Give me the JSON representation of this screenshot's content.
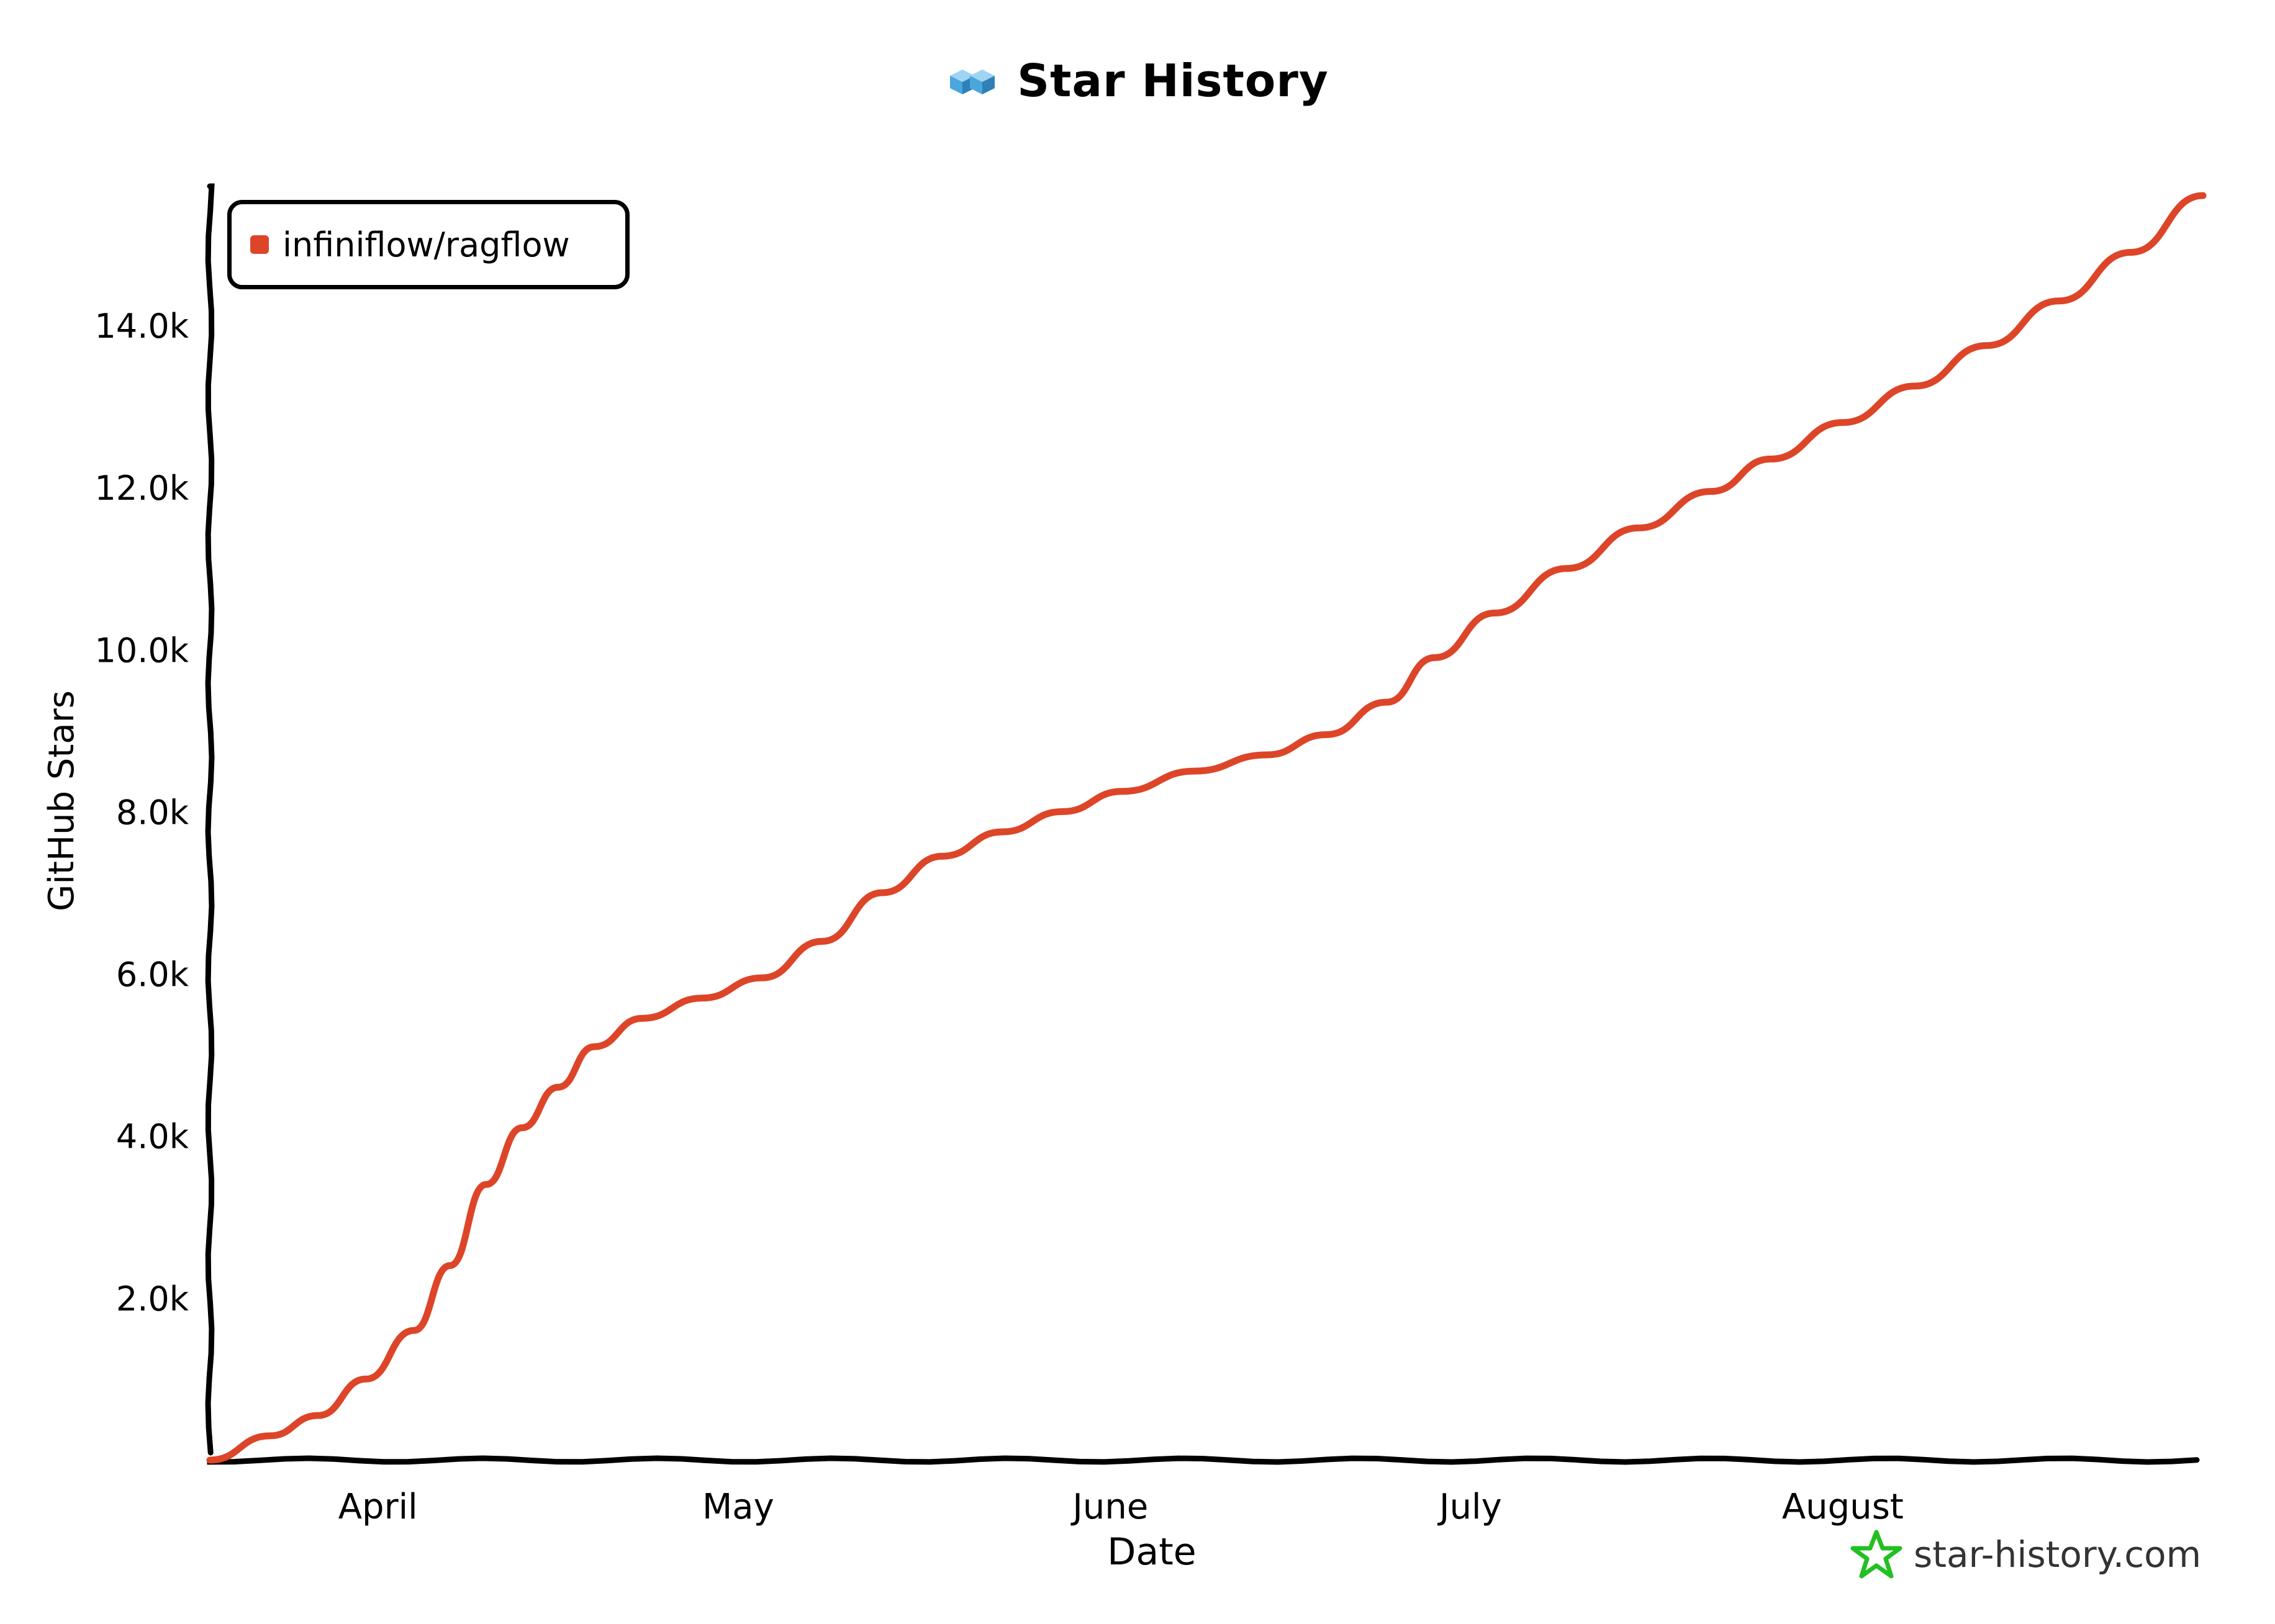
{
  "title": "Star History",
  "watermark": "star-history.com",
  "colors": {
    "series": "#dd4528",
    "axis": "#000000",
    "logo_star": "#22c022",
    "logo_cube": "#4aa6dc"
  },
  "icons": {
    "title_logo": "cube-logo-icon",
    "watermark_logo": "star-logo-icon"
  },
  "chart_data": {
    "type": "line",
    "title": "Star History",
    "xlabel": "Date",
    "ylabel": "GitHub Stars",
    "x_ticks": [
      "April",
      "May",
      "June",
      "July",
      "August"
    ],
    "y_ticks": [
      "2.0k",
      "4.0k",
      "6.0k",
      "8.0k",
      "10.0k",
      "12.0k",
      "14.0k"
    ],
    "ylim": [
      0,
      15700
    ],
    "grid": false,
    "legend_position": "top-left",
    "series": [
      {
        "name": "infiniflow/ragflow",
        "color": "#dd4528",
        "points": [
          {
            "x": "2024-03-18",
            "y": 0
          },
          {
            "x": "2024-03-23",
            "y": 300
          },
          {
            "x": "2024-03-27",
            "y": 550
          },
          {
            "x": "2024-03-31",
            "y": 1000
          },
          {
            "x": "2024-04-04",
            "y": 1600
          },
          {
            "x": "2024-04-07",
            "y": 2400
          },
          {
            "x": "2024-04-10",
            "y": 3400
          },
          {
            "x": "2024-04-13",
            "y": 4100
          },
          {
            "x": "2024-04-16",
            "y": 4600
          },
          {
            "x": "2024-04-19",
            "y": 5100
          },
          {
            "x": "2024-04-23",
            "y": 5450
          },
          {
            "x": "2024-04-28",
            "y": 5700
          },
          {
            "x": "2024-05-03",
            "y": 5950
          },
          {
            "x": "2024-05-08",
            "y": 6400
          },
          {
            "x": "2024-05-13",
            "y": 7000
          },
          {
            "x": "2024-05-18",
            "y": 7450
          },
          {
            "x": "2024-05-23",
            "y": 7750
          },
          {
            "x": "2024-05-28",
            "y": 8000
          },
          {
            "x": "2024-06-02",
            "y": 8250
          },
          {
            "x": "2024-06-08",
            "y": 8500
          },
          {
            "x": "2024-06-14",
            "y": 8700
          },
          {
            "x": "2024-06-19",
            "y": 8950
          },
          {
            "x": "2024-06-24",
            "y": 9350
          },
          {
            "x": "2024-06-28",
            "y": 9900
          },
          {
            "x": "2024-07-03",
            "y": 10450
          },
          {
            "x": "2024-07-09",
            "y": 11000
          },
          {
            "x": "2024-07-15",
            "y": 11500
          },
          {
            "x": "2024-07-21",
            "y": 11950
          },
          {
            "x": "2024-07-26",
            "y": 12350
          },
          {
            "x": "2024-08-01",
            "y": 12800
          },
          {
            "x": "2024-08-07",
            "y": 13250
          },
          {
            "x": "2024-08-13",
            "y": 13750
          },
          {
            "x": "2024-08-19",
            "y": 14300
          },
          {
            "x": "2024-08-25",
            "y": 14900
          },
          {
            "x": "2024-08-31",
            "y": 15600
          }
        ]
      }
    ]
  }
}
